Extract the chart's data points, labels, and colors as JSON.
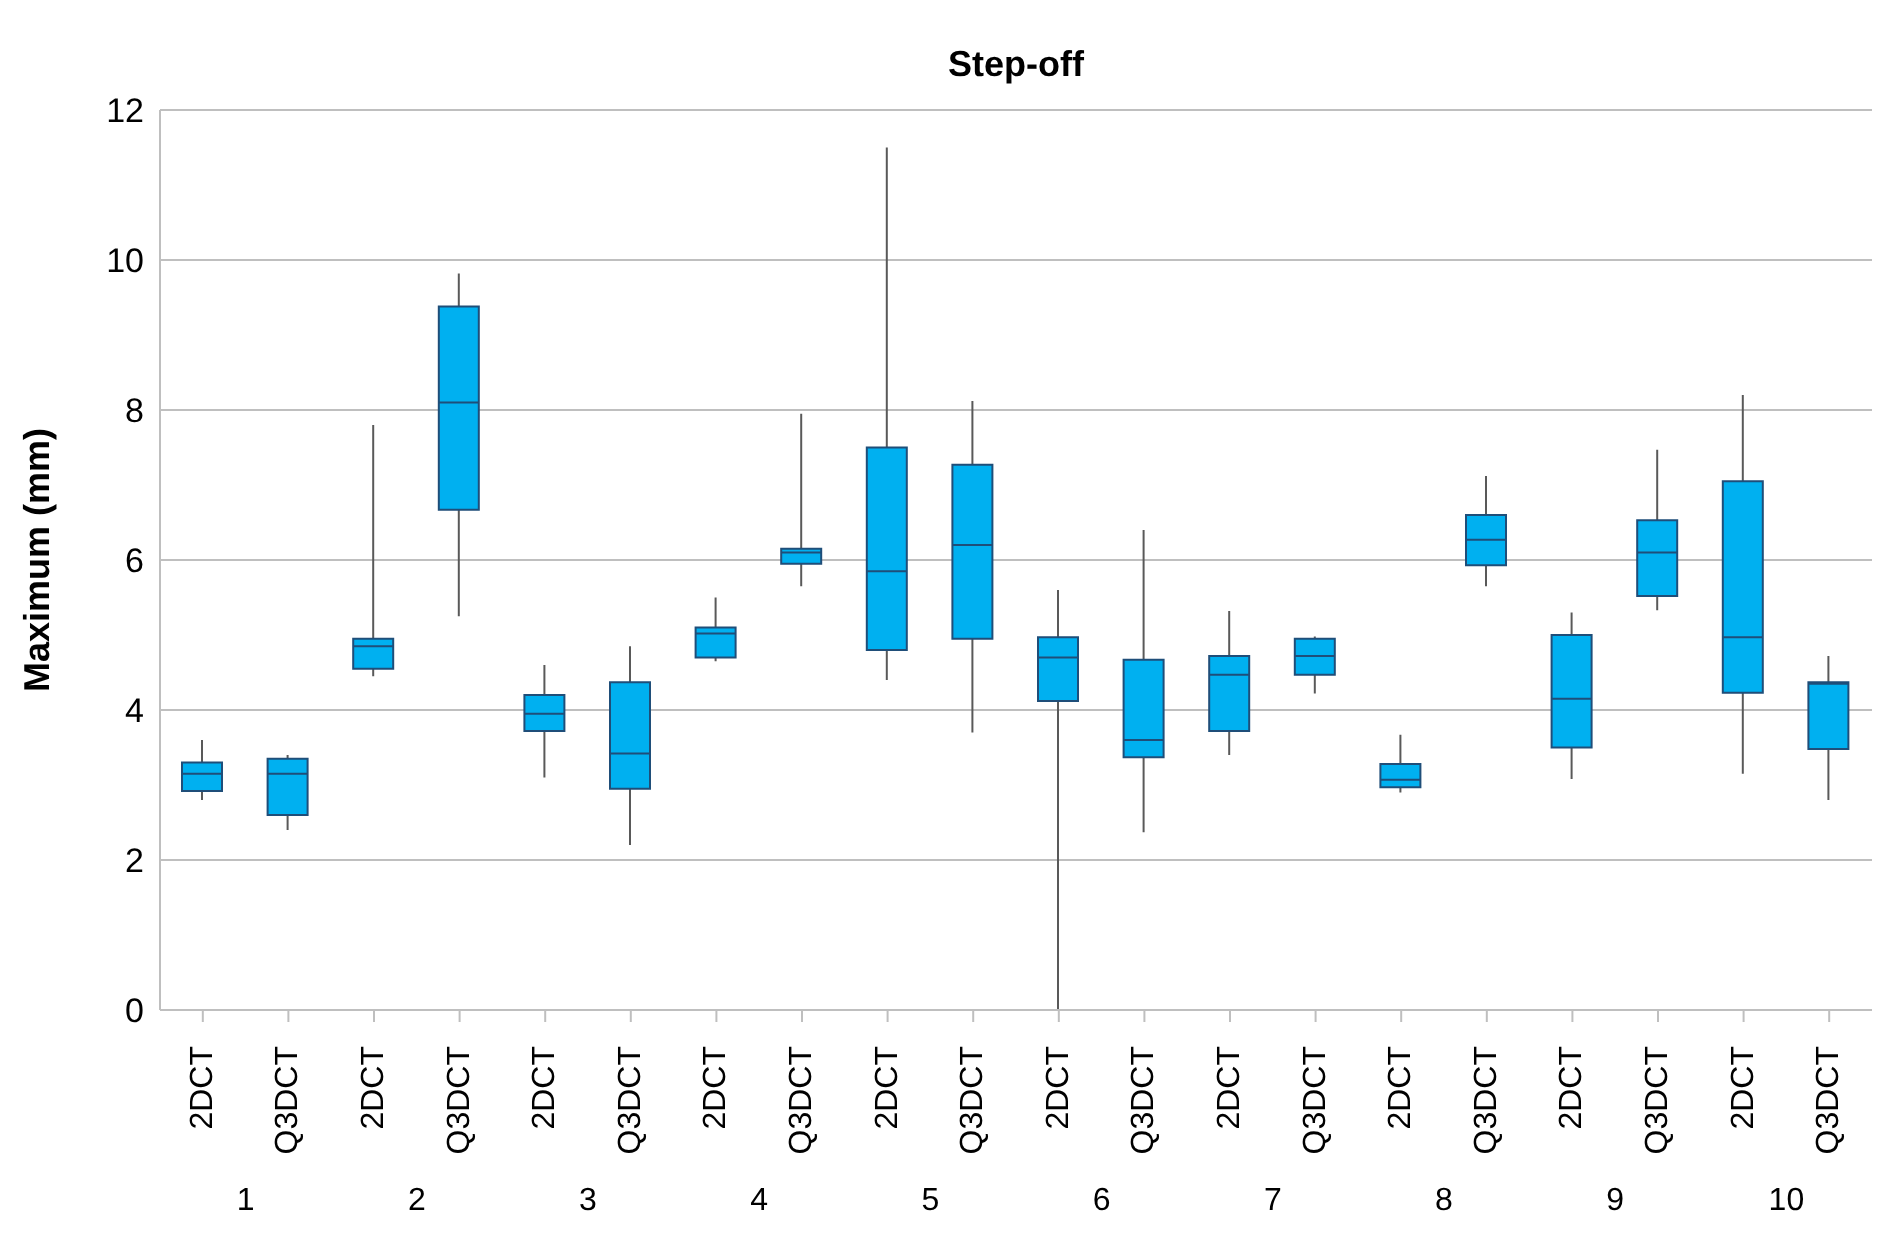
{
  "chart_data": {
    "type": "box",
    "title": "Step-off",
    "ylabel": "Maximum (mm)",
    "categories": [
      "2DCT",
      "Q3DCT",
      "2DCT",
      "Q3DCT",
      "2DCT",
      "Q3DCT",
      "2DCT",
      "Q3DCT",
      "2DCT",
      "Q3DCT",
      "2DCT",
      "Q3DCT",
      "2DCT",
      "Q3DCT",
      "2DCT",
      "Q3DCT",
      "2DCT",
      "Q3DCT",
      "2DCT",
      "Q3DCT"
    ],
    "annotations": [
      "1",
      "2",
      "3",
      "4",
      "5",
      "6",
      "7",
      "8",
      "9",
      "10"
    ],
    "color": "#00b0f0",
    "boxes": [
      {
        "low": 2.8,
        "q1": 2.92,
        "median": 3.15,
        "q3": 3.3,
        "high": 3.6
      },
      {
        "low": 2.4,
        "q1": 2.6,
        "median": 3.15,
        "q3": 3.35,
        "high": 3.4
      },
      {
        "low": 4.45,
        "q1": 4.55,
        "median": 4.85,
        "q3": 4.95,
        "high": 7.8
      },
      {
        "low": 5.25,
        "q1": 6.67,
        "median": 8.1,
        "q3": 9.38,
        "high": 9.82
      },
      {
        "low": 3.1,
        "q1": 3.72,
        "median": 3.95,
        "q3": 4.2,
        "high": 4.6
      },
      {
        "low": 2.2,
        "q1": 2.95,
        "median": 3.42,
        "q3": 4.37,
        "high": 4.85
      },
      {
        "low": 4.65,
        "q1": 4.7,
        "median": 5.02,
        "q3": 5.1,
        "high": 5.5
      },
      {
        "low": 5.65,
        "q1": 5.95,
        "median": 6.1,
        "q3": 6.15,
        "high": 7.95
      },
      {
        "low": 4.4,
        "q1": 4.8,
        "median": 5.85,
        "q3": 7.5,
        "high": 11.5
      },
      {
        "low": 3.7,
        "q1": 4.95,
        "median": 6.2,
        "q3": 7.27,
        "high": 8.12
      },
      {
        "low": 0,
        "q1": 4.12,
        "median": 4.7,
        "q3": 4.97,
        "high": 5.6
      },
      {
        "low": 2.37,
        "q1": 3.37,
        "median": 3.6,
        "q3": 4.67,
        "high": 6.4
      },
      {
        "low": 3.4,
        "q1": 3.72,
        "median": 4.47,
        "q3": 4.72,
        "high": 5.32
      },
      {
        "low": 4.22,
        "q1": 4.47,
        "median": 4.72,
        "q3": 4.95,
        "high": 4.98
      },
      {
        "low": 2.9,
        "q1": 2.97,
        "median": 3.07,
        "q3": 3.28,
        "high": 3.67
      },
      {
        "low": 5.65,
        "q1": 5.93,
        "median": 6.27,
        "q3": 6.6,
        "high": 7.12
      },
      {
        "low": 3.08,
        "q1": 3.5,
        "median": 4.15,
        "q3": 5.0,
        "high": 5.3
      },
      {
        "low": 5.33,
        "q1": 5.52,
        "median": 6.1,
        "q3": 6.53,
        "high": 7.47
      },
      {
        "low": 3.15,
        "q1": 4.23,
        "median": 4.97,
        "q3": 7.05,
        "high": 8.2
      },
      {
        "low": 2.8,
        "q1": 3.48,
        "median": 4.35,
        "q3": 4.37,
        "high": 4.72
      }
    ],
    "ylim": [
      0,
      12
    ],
    "yticks": [
      0,
      2,
      4,
      6,
      8,
      10,
      12
    ],
    "grid": "y"
  }
}
